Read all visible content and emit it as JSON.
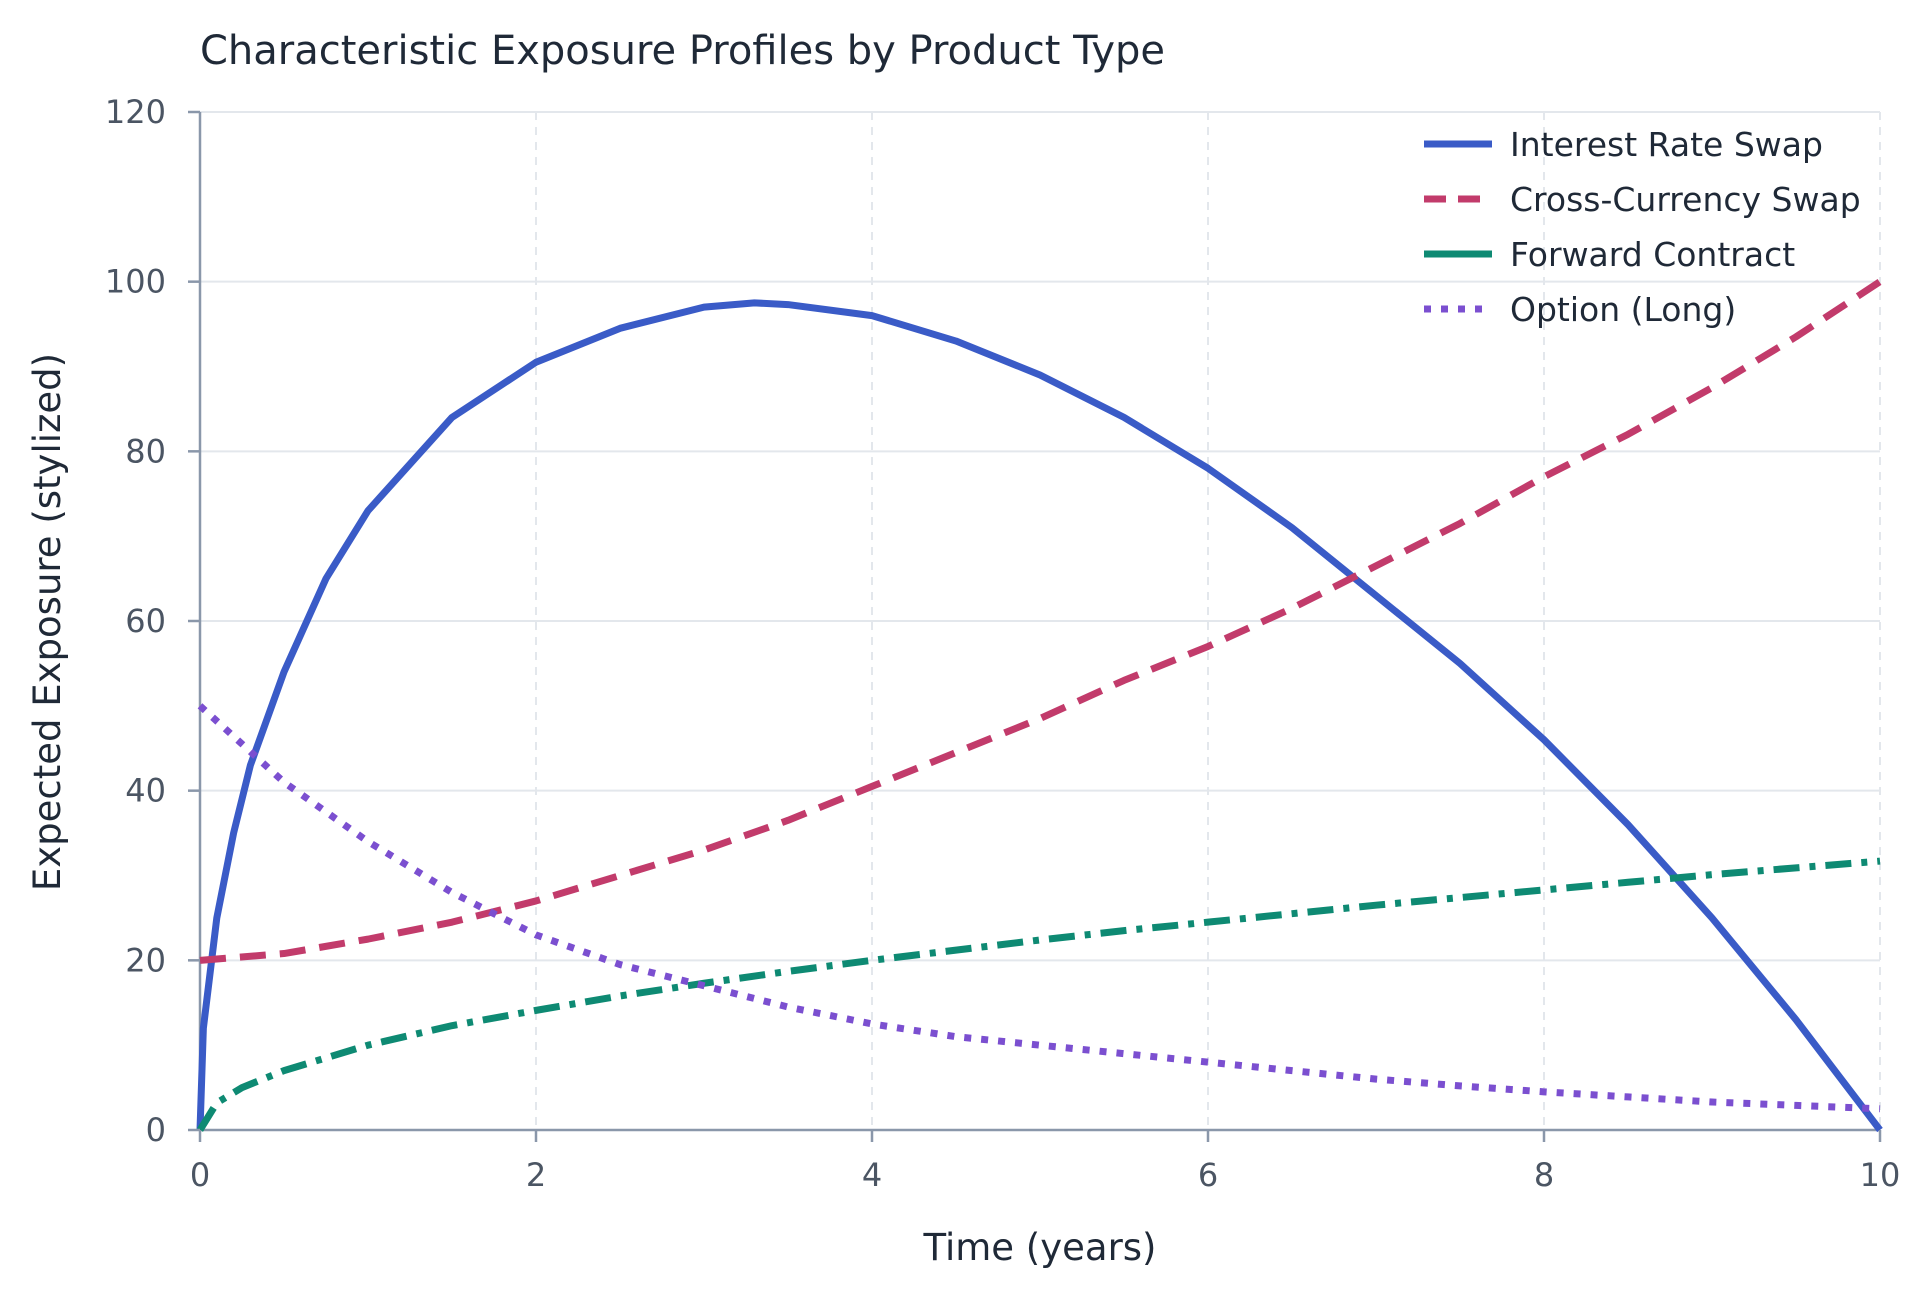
{
  "chart_data": {
    "type": "line",
    "title": "Characteristic Exposure Profiles by Product Type",
    "xlabel": "Time (years)",
    "ylabel": "Expected Exposure (stylized)",
    "xlim": [
      0,
      10
    ],
    "ylim": [
      0,
      120
    ],
    "xticks": [
      0,
      2,
      4,
      6,
      8,
      10
    ],
    "yticks": [
      0,
      20,
      40,
      60,
      80,
      100,
      120
    ],
    "grid": true,
    "legend_position": "top-right",
    "series": [
      {
        "name": "Interest Rate Swap",
        "color": "#3a5bc7",
        "style": "solid",
        "x": [
          0,
          0.02,
          0.1,
          0.2,
          0.3,
          0.5,
          0.75,
          1,
          1.5,
          2,
          2.5,
          3,
          3.3,
          3.5,
          4,
          4.5,
          5,
          5.5,
          6,
          6.5,
          7,
          7.5,
          8,
          8.5,
          9,
          9.5,
          10
        ],
        "values": [
          0,
          12,
          25,
          35,
          43,
          54,
          65,
          73,
          84,
          90.5,
          94.5,
          97,
          97.5,
          97.3,
          96,
          93,
          89,
          84,
          78,
          71,
          63,
          55,
          46,
          36,
          25,
          13,
          0
        ]
      },
      {
        "name": "Cross-Currency Swap",
        "color": "#c23b6b",
        "style": "dashed",
        "x": [
          0,
          0.5,
          1,
          1.5,
          2,
          2.5,
          3,
          3.5,
          4,
          4.5,
          5,
          5.5,
          6,
          6.5,
          7,
          7.5,
          8,
          8.5,
          9,
          9.5,
          10
        ],
        "values": [
          20,
          20.8,
          22.5,
          24.5,
          27,
          30,
          33,
          36.5,
          40.5,
          44.5,
          48.5,
          53,
          57,
          61.5,
          66.5,
          71.5,
          77,
          82,
          87.5,
          93.5,
          100
        ]
      },
      {
        "name": "Forward Contract",
        "color": "#0e8a73",
        "style": "dashdot",
        "x": [
          0,
          0.1,
          0.25,
          0.5,
          1,
          1.5,
          2,
          2.5,
          3,
          3.5,
          4,
          4.5,
          5,
          5.5,
          6,
          6.5,
          7,
          7.5,
          8,
          8.5,
          9,
          9.5,
          10
        ],
        "values": [
          0,
          3.2,
          5,
          7,
          10,
          12.3,
          14.1,
          15.8,
          17.3,
          18.7,
          20,
          21.2,
          22.4,
          23.5,
          24.5,
          25.5,
          26.5,
          27.4,
          28.3,
          29.2,
          30.1,
          30.9,
          31.7
        ]
      },
      {
        "name": "Option (Long)",
        "color": "#7b4fd0",
        "style": "dotted",
        "x": [
          0,
          0.5,
          1,
          1.5,
          2,
          2.5,
          3,
          3.5,
          4,
          4.5,
          5,
          5.5,
          6,
          6.5,
          7,
          7.5,
          8,
          8.5,
          9,
          9.5,
          10
        ],
        "values": [
          50,
          41,
          34,
          28,
          23,
          19.5,
          17,
          14.5,
          12.5,
          11,
          10,
          9,
          8,
          7,
          6,
          5.2,
          4.5,
          3.9,
          3.3,
          2.9,
          2.5
        ]
      }
    ]
  }
}
